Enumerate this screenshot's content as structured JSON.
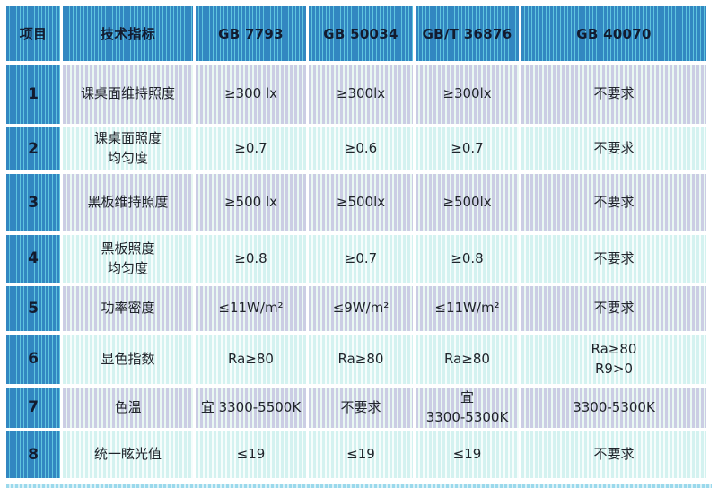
{
  "colors": {
    "header_base": "#3287c1",
    "header_stripe": "#5fc4de",
    "odd_base": "#cbcde4",
    "odd_stripe": "#e9f8f2",
    "even_base": "#d4f2f0",
    "even_stripe": "#f6fdfc",
    "header_text": "#131b2e",
    "body_text": "#20242b"
  },
  "table": {
    "columns": [
      {
        "key": "item",
        "label": "项目"
      },
      {
        "key": "indicator",
        "label": "技术指标"
      },
      {
        "key": "gb7793",
        "label": "GB 7793"
      },
      {
        "key": "gb50034",
        "label": "GB 50034"
      },
      {
        "key": "gbt36876",
        "label": "GB/T 36876"
      },
      {
        "key": "gb40070",
        "label": "GB 40070"
      }
    ],
    "rows": [
      {
        "no": "1",
        "cells": [
          [
            "课桌面维持照度"
          ],
          [
            "≥300 lx"
          ],
          [
            "≥300lx"
          ],
          [
            "≥300lx"
          ],
          [
            "不要求"
          ]
        ]
      },
      {
        "no": "2",
        "cells": [
          [
            "课桌面照度",
            "均匀度"
          ],
          [
            "≥0.7"
          ],
          [
            "≥0.6"
          ],
          [
            "≥0.7"
          ],
          [
            "不要求"
          ]
        ]
      },
      {
        "no": "3",
        "cells": [
          [
            "黑板维持照度"
          ],
          [
            "≥500 lx"
          ],
          [
            "≥500lx"
          ],
          [
            "≥500lx"
          ],
          [
            "不要求"
          ]
        ]
      },
      {
        "no": "4",
        "cells": [
          [
            "黑板照度",
            "均匀度"
          ],
          [
            "≥0.8"
          ],
          [
            "≥0.7"
          ],
          [
            "≥0.8"
          ],
          [
            "不要求"
          ]
        ]
      },
      {
        "no": "5",
        "cells": [
          [
            "功率密度"
          ],
          [
            "≤11W/m²"
          ],
          [
            "≤9W/m²"
          ],
          [
            "≤11W/m²"
          ],
          [
            "不要求"
          ]
        ]
      },
      {
        "no": "6",
        "cells": [
          [
            "显色指数"
          ],
          [
            "Ra≥80"
          ],
          [
            "Ra≥80"
          ],
          [
            "Ra≥80"
          ],
          [
            "Ra≥80",
            "R9>0"
          ]
        ]
      },
      {
        "no": "7",
        "cells": [
          [
            "色温"
          ],
          [
            "宜 3300-5500K"
          ],
          [
            "不要求"
          ],
          [
            "宜",
            "3300-5300K"
          ],
          [
            "3300-5300K"
          ]
        ]
      },
      {
        "no": "8",
        "cells": [
          [
            "统一眩光值"
          ],
          [
            "≤19"
          ],
          [
            "≤19"
          ],
          [
            "≤19"
          ],
          [
            "不要求"
          ]
        ]
      }
    ]
  },
  "chart_data": {
    "type": "table",
    "title": "",
    "columns": [
      "项目",
      "技术指标",
      "GB 7793",
      "GB 50034",
      "GB/T 36876",
      "GB 40070"
    ],
    "rows": [
      [
        "1",
        "课桌面维持照度",
        "≥300 lx",
        "≥300lx",
        "≥300lx",
        "不要求"
      ],
      [
        "2",
        "课桌面照度 均匀度",
        "≥0.7",
        "≥0.6",
        "≥0.7",
        "不要求"
      ],
      [
        "3",
        "黑板维持照度",
        "≥500 lx",
        "≥500lx",
        "≥500lx",
        "不要求"
      ],
      [
        "4",
        "黑板照度 均匀度",
        "≥0.8",
        "≥0.7",
        "≥0.8",
        "不要求"
      ],
      [
        "5",
        "功率密度",
        "≤11W/m²",
        "≤9W/m²",
        "≤11W/m²",
        "不要求"
      ],
      [
        "6",
        "显色指数",
        "Ra≥80",
        "Ra≥80",
        "Ra≥80",
        "Ra≥80 R9>0"
      ],
      [
        "7",
        "色温",
        "宜 3300-5500K",
        "不要求",
        "宜 3300-5300K",
        "3300-5300K"
      ],
      [
        "8",
        "统一眩光值",
        "≤19",
        "≤19",
        "≤19",
        "不要求"
      ]
    ]
  }
}
